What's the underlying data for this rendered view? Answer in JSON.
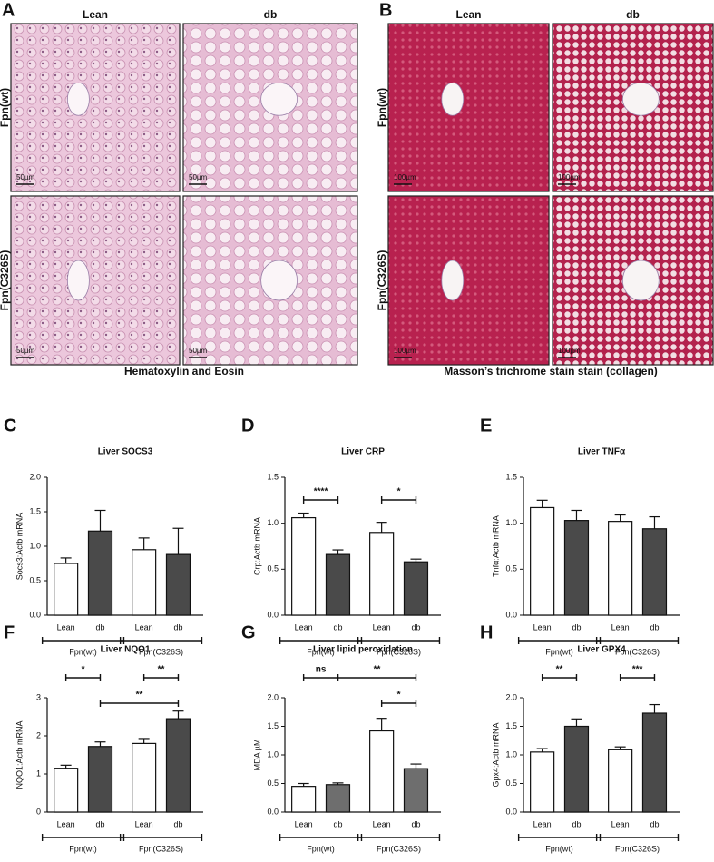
{
  "panel_a": {
    "label": "A",
    "columns": [
      "Lean",
      "db"
    ],
    "rows": [
      "Fpn(wt)",
      "Fpn(C326S)"
    ],
    "scale_bars": [
      "50µm",
      "50µm",
      "50µm",
      "50µm"
    ],
    "caption": "Hematoxylin and Eosin"
  },
  "panel_b": {
    "label": "B",
    "columns": [
      "Lean",
      "db"
    ],
    "rows": [
      "Fpn(wt)",
      "Fpn(C326S)"
    ],
    "scale_bars": [
      "100µm",
      "100µm",
      "100µm",
      "100µm"
    ],
    "caption": "Masson’s trichrome stain stain (collagen)"
  },
  "chart_data": [
    {
      "type": "bar",
      "panel": "C",
      "title": "Liver SOCS3",
      "ylabel": "Socs3:Actb mRNA",
      "categories": [
        "Lean",
        "db",
        "Lean",
        "db"
      ],
      "groups": [
        "Fpn(wt)",
        "Fpn(C326S)"
      ],
      "values": [
        0.75,
        1.22,
        0.95,
        0.88
      ],
      "errors": [
        0.08,
        0.3,
        0.17,
        0.38
      ],
      "colors": [
        "#ffffff",
        "#4a4a4a",
        "#ffffff",
        "#4a4a4a"
      ],
      "ylim": [
        0,
        2
      ],
      "yticks": [
        {
          "value": 0,
          "label": "0.0"
        },
        0.5,
        {
          "value": 1,
          "label": "1.0"
        },
        1.5,
        {
          "value": 2,
          "label": "2.0"
        }
      ],
      "annotations": []
    },
    {
      "type": "bar",
      "panel": "D",
      "title": "Liver CRP",
      "ylabel": "Crp:Actb mRNA",
      "categories": [
        "Lean",
        "db",
        "Lean",
        "db"
      ],
      "groups": [
        "Fpn(wt)",
        "Fpn(C326S)"
      ],
      "values": [
        1.06,
        0.66,
        0.9,
        0.58
      ],
      "errors": [
        0.05,
        0.05,
        0.11,
        0.03
      ],
      "colors": [
        "#ffffff",
        "#4a4a4a",
        "#ffffff",
        "#4a4a4a"
      ],
      "ylim": [
        0,
        1.5
      ],
      "yticks": [
        {
          "value": 0,
          "label": "0.0"
        },
        0.5,
        {
          "value": 1,
          "label": "1.0"
        },
        1.5
      ],
      "annotations": [
        {
          "text": "****",
          "from": 0,
          "to": 1
        },
        {
          "text": "*",
          "from": 2,
          "to": 3
        }
      ]
    },
    {
      "type": "bar",
      "panel": "E",
      "title": "Liver TNFα",
      "ylabel": "Tnfα:Actb mRNA",
      "categories": [
        "Lean",
        "db",
        "Lean",
        "db"
      ],
      "groups": [
        "Fpn(wt)",
        "Fpn(C326S)"
      ],
      "values": [
        1.17,
        1.03,
        1.02,
        0.94
      ],
      "errors": [
        0.08,
        0.11,
        0.07,
        0.13
      ],
      "colors": [
        "#ffffff",
        "#4a4a4a",
        "#ffffff",
        "#4a4a4a"
      ],
      "ylim": [
        0,
        1.5
      ],
      "yticks": [
        {
          "value": 0,
          "label": "0.0"
        },
        0.5,
        {
          "value": 1,
          "label": "1.0"
        },
        1.5
      ],
      "annotations": []
    },
    {
      "type": "bar",
      "panel": "F",
      "title": "Liver NQO1",
      "ylabel": "NQO1:Actb mRNA",
      "categories": [
        "Lean",
        "db",
        "Lean",
        "db"
      ],
      "groups": [
        "Fpn(wt)",
        "Fpn(C326S)"
      ],
      "values": [
        1.15,
        1.72,
        1.8,
        2.45
      ],
      "errors": [
        0.08,
        0.12,
        0.13,
        0.2
      ],
      "colors": [
        "#ffffff",
        "#4a4a4a",
        "#ffffff",
        "#4a4a4a"
      ],
      "ylim": [
        0,
        3
      ],
      "yticks": [
        0,
        1,
        2,
        3
      ],
      "annotations": [
        {
          "text": "*",
          "from": 0,
          "to": 1
        },
        {
          "text": "**",
          "from": 2,
          "to": 3
        },
        {
          "text": "**",
          "from": 1,
          "to": 3
        }
      ]
    },
    {
      "type": "bar",
      "panel": "G",
      "title": "Liver lipid peroxidation",
      "ylabel": "MDA µM",
      "categories": [
        "Lean",
        "db",
        "Lean",
        "db"
      ],
      "groups": [
        "Fpn(wt)",
        "Fpn(C326S)"
      ],
      "values": [
        0.45,
        0.48,
        1.42,
        0.76
      ],
      "errors": [
        0.05,
        0.03,
        0.22,
        0.08
      ],
      "colors": [
        "#ffffff",
        "#6e6e6e",
        "#ffffff",
        "#6e6e6e"
      ],
      "ylim": [
        0,
        2
      ],
      "yticks": [
        {
          "value": 0,
          "label": "0.0"
        },
        0.5,
        {
          "value": 1,
          "label": "1.0"
        },
        1.5,
        {
          "value": 2,
          "label": "2.0"
        }
      ],
      "annotations": [
        {
          "text": "ns",
          "from": 0,
          "to": 1
        },
        {
          "text": "**",
          "from": 1,
          "to": 3
        },
        {
          "text": "*",
          "from": 2,
          "to": 3
        }
      ]
    },
    {
      "type": "bar",
      "panel": "H",
      "title": "Liver GPX4",
      "ylabel": "Gpx4:Actb mRNA",
      "categories": [
        "Lean",
        "db",
        "Lean",
        "db"
      ],
      "groups": [
        "Fpn(wt)",
        "Fpn(C326S)"
      ],
      "values": [
        1.05,
        1.5,
        1.09,
        1.73
      ],
      "errors": [
        0.06,
        0.13,
        0.05,
        0.15
      ],
      "colors": [
        "#ffffff",
        "#4a4a4a",
        "#ffffff",
        "#4a4a4a"
      ],
      "ylim": [
        0,
        2
      ],
      "yticks": [
        {
          "value": 0,
          "label": "0.0"
        },
        0.5,
        {
          "value": 1,
          "label": "1.0"
        },
        1.5,
        {
          "value": 2,
          "label": "2.0"
        }
      ],
      "annotations": [
        {
          "text": "**",
          "from": 0,
          "to": 1
        },
        {
          "text": "***",
          "from": 2,
          "to": 3
        }
      ]
    }
  ]
}
